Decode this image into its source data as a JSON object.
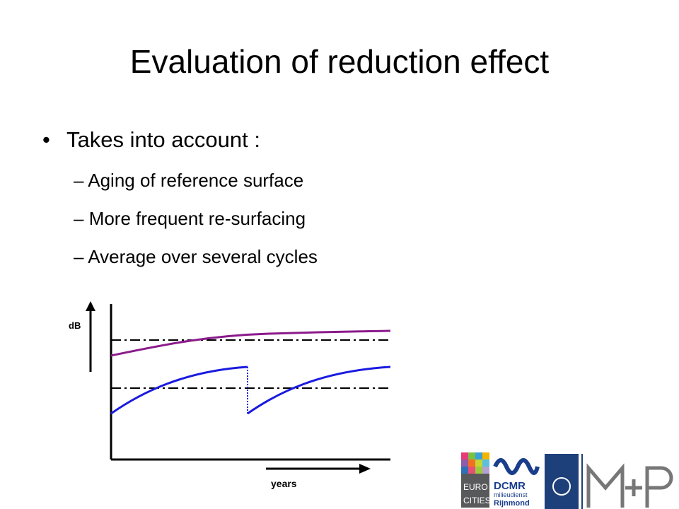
{
  "title": "Evaluation of reduction effect",
  "bullets": {
    "main": "Takes into account :",
    "sub": [
      "Aging of reference surface",
      "More frequent re-surfacing",
      "Average over several cycles"
    ]
  },
  "diagram": {
    "y_label": "dB",
    "x_label": "years"
  },
  "logos": {
    "eurocities": [
      "EURO",
      "CITIES"
    ],
    "dcmr": [
      "DCMR",
      "milieudienst",
      "Rijnmond"
    ]
  }
}
